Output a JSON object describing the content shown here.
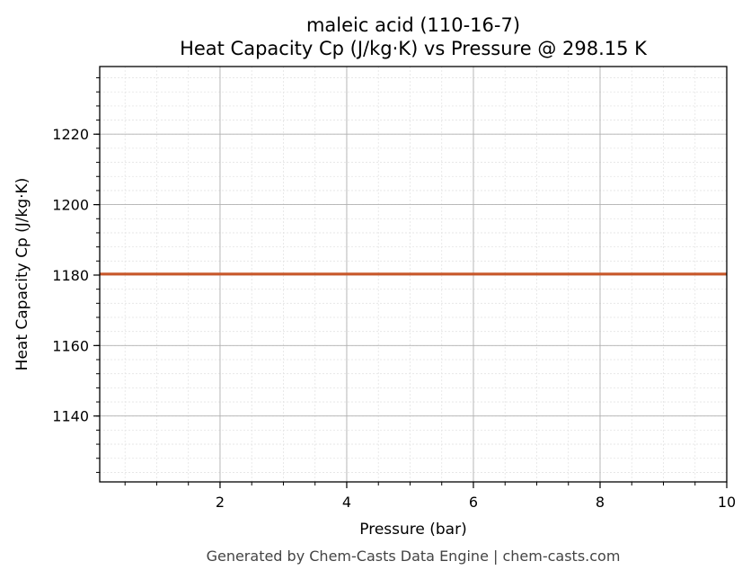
{
  "chart_data": {
    "type": "line",
    "title": "maleic acid (110-16-7)",
    "subtitle": "Heat Capacity Cp (J/kg·K) vs Pressure @ 298.15 K",
    "xlabel": "Pressure (bar)",
    "ylabel": "Heat Capacity Cp (J/kg·K)",
    "xlim": [
      0.1,
      10
    ],
    "ylim": [
      1121.3,
      1239.2
    ],
    "x_ticks": [
      2,
      4,
      6,
      8,
      10
    ],
    "x_minor_step": 0.5,
    "y_ticks": [
      1140,
      1160,
      1180,
      1200,
      1220
    ],
    "y_minor_step": 4,
    "grid": true,
    "series": [
      {
        "color": "#c8582b",
        "x": [
          0.1,
          1,
          2,
          3,
          4,
          5,
          6,
          7,
          8,
          9,
          10
        ],
        "y": [
          1180.3,
          1180.3,
          1180.3,
          1180.3,
          1180.3,
          1180.3,
          1180.3,
          1180.3,
          1180.3,
          1180.3,
          1180.3
        ]
      }
    ]
  },
  "footer": "Generated by Chem-Casts Data Engine | chem-casts.com"
}
